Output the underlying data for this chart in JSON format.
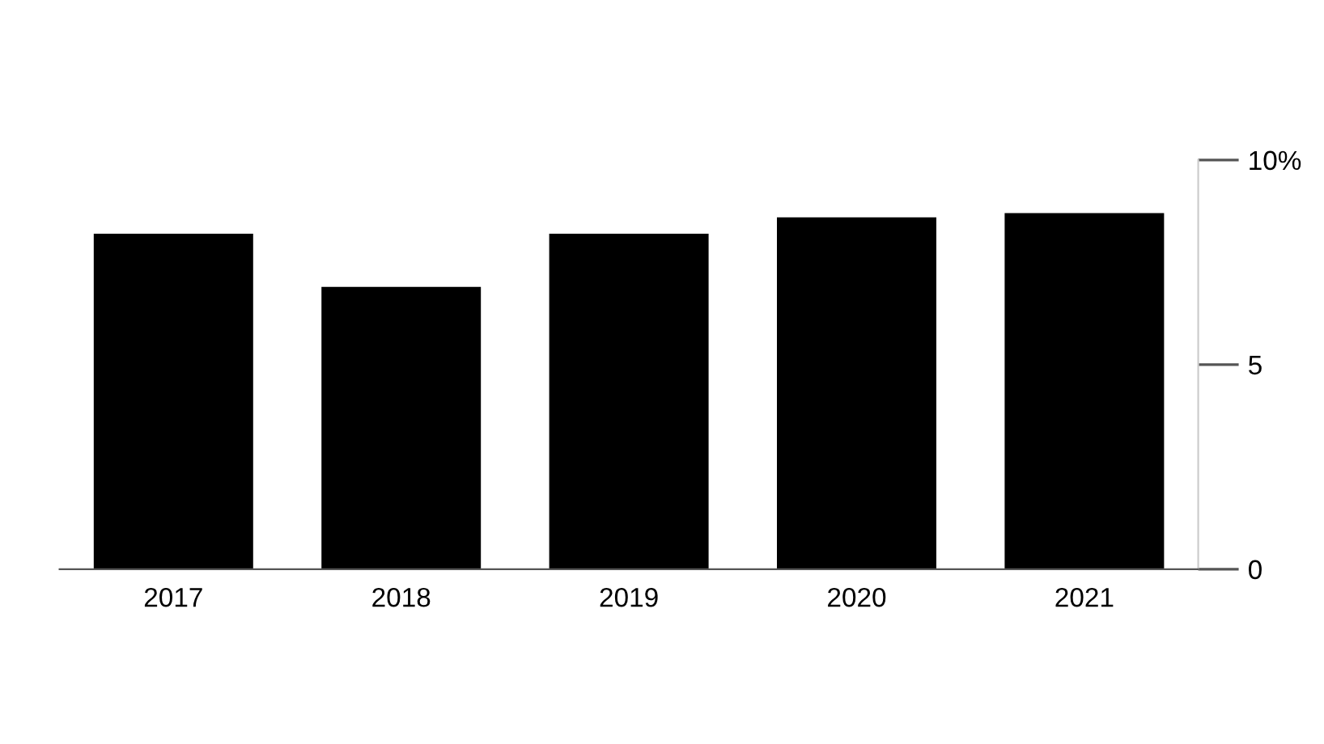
{
  "chart_data": {
    "type": "bar",
    "categories": [
      "2017",
      "2018",
      "2019",
      "2020",
      "2021"
    ],
    "values": [
      8.2,
      6.9,
      8.2,
      8.6,
      8.7
    ],
    "color": "#000000",
    "ylim": [
      0,
      10
    ],
    "yticks": [
      0,
      5,
      {
        "value": 10,
        "label": "10%"
      }
    ],
    "grid": false
  }
}
